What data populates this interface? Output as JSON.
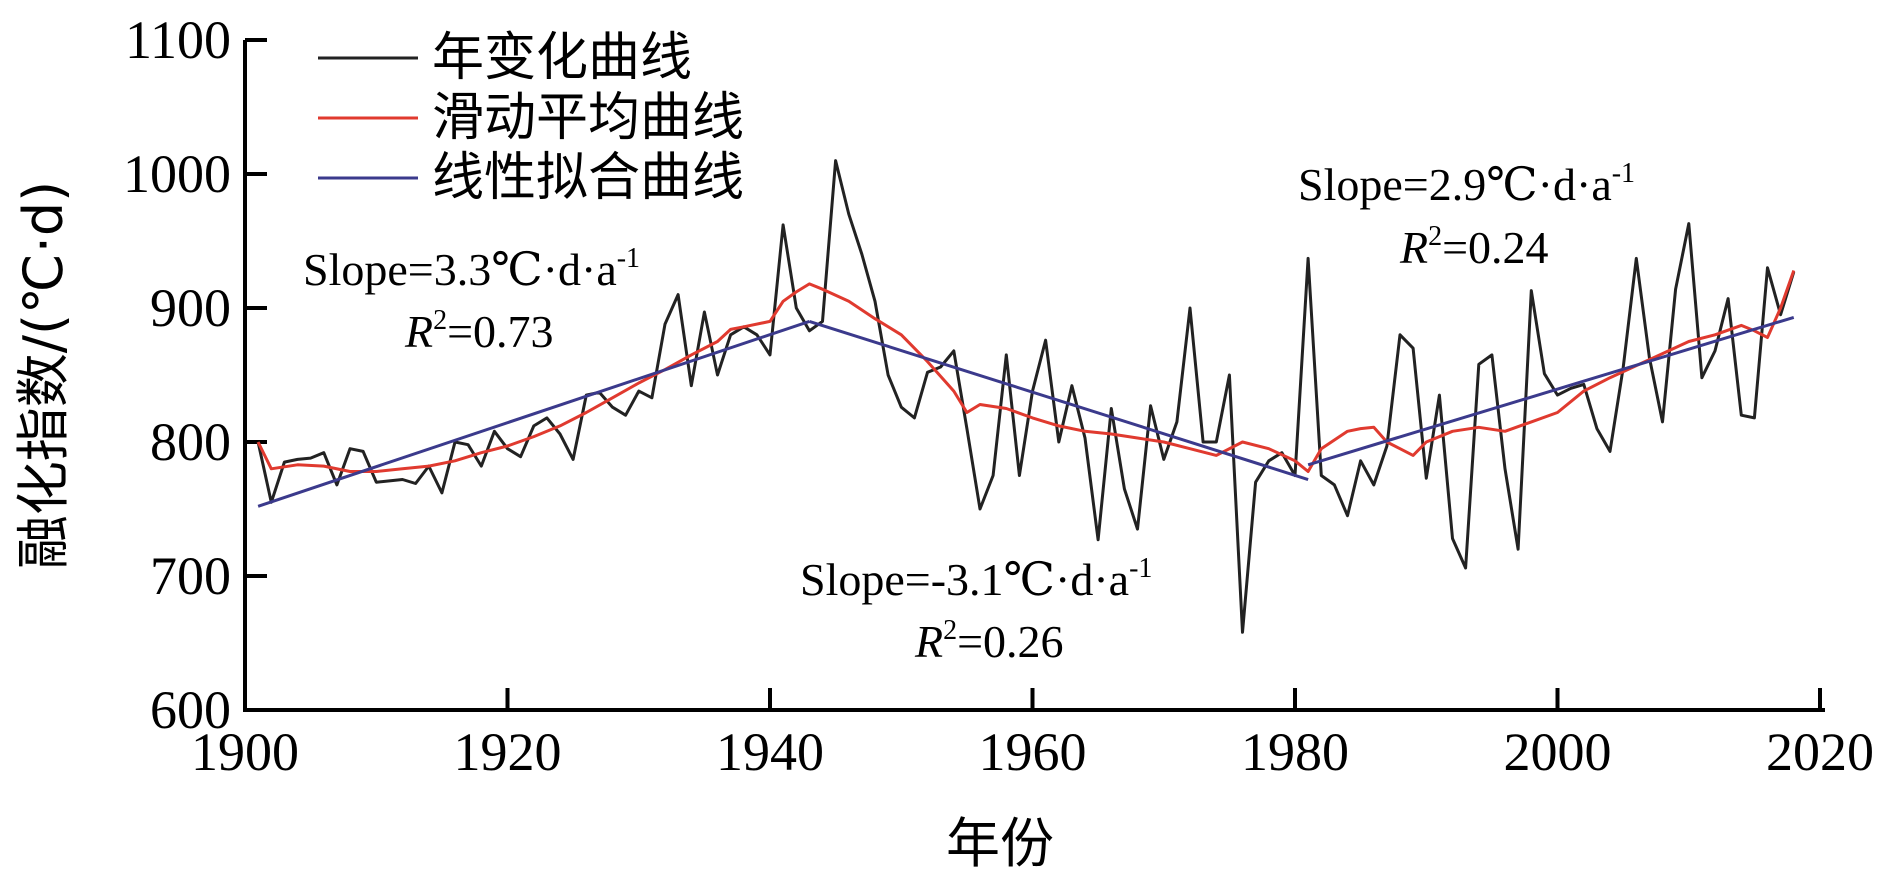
{
  "chart_data": {
    "type": "line",
    "xlabel": "年份",
    "ylabel": "融化指数/(℃·d)",
    "xlim": [
      1900,
      2020
    ],
    "ylim": [
      600,
      1100
    ],
    "x_ticks": [
      "1900",
      "1920",
      "1940",
      "1960",
      "1980",
      "2000",
      "2020"
    ],
    "y_ticks": [
      "600",
      "700",
      "800",
      "900",
      "1000",
      "1100"
    ],
    "legend_position": "top-left",
    "legend": [
      "年变化曲线",
      "滑动平均曲线",
      "线性拟合曲线"
    ],
    "colors": {
      "annual": "#222222",
      "moving_avg": "#e03a2f",
      "linear_fit": "#3b3a8c"
    },
    "series": [
      {
        "name": "年变化曲线",
        "x": [
          1901,
          1902,
          1903,
          1904,
          1905,
          1906,
          1907,
          1908,
          1909,
          1910,
          1911,
          1912,
          1913,
          1914,
          1915,
          1916,
          1917,
          1918,
          1919,
          1920,
          1921,
          1922,
          1923,
          1924,
          1925,
          1926,
          1927,
          1928,
          1929,
          1930,
          1931,
          1932,
          1933,
          1934,
          1935,
          1936,
          1937,
          1938,
          1939,
          1940,
          1941,
          1942,
          1943,
          1944,
          1945,
          1946,
          1947,
          1948,
          1949,
          1950,
          1951,
          1952,
          1953,
          1954,
          1955,
          1956,
          1957,
          1958,
          1959,
          1960,
          1961,
          1962,
          1963,
          1964,
          1965,
          1966,
          1967,
          1968,
          1969,
          1970,
          1971,
          1972,
          1973,
          1974,
          1975,
          1976,
          1977,
          1978,
          1979,
          1980,
          1981,
          1982,
          1983,
          1984,
          1985,
          1986,
          1987,
          1988,
          1989,
          1990,
          1991,
          1992,
          1993,
          1994,
          1995,
          1996,
          1997,
          1998,
          1999,
          2000,
          2001,
          2002,
          2003,
          2004,
          2005,
          2006,
          2007,
          2008,
          2009,
          2010,
          2011,
          2012,
          2013,
          2014,
          2015,
          2016,
          2017,
          2018
        ],
        "y": [
          800,
          755,
          785,
          787,
          788,
          792,
          768,
          795,
          793,
          770,
          771,
          772,
          769,
          782,
          762,
          800,
          798,
          782,
          808,
          795,
          789,
          812,
          818,
          806,
          787,
          835,
          837,
          826,
          820,
          838,
          833,
          888,
          910,
          842,
          897,
          850,
          880,
          886,
          880,
          865,
          962,
          900,
          883,
          890,
          1010,
          970,
          940,
          905,
          850,
          826,
          818,
          852,
          856,
          868,
          810,
          750,
          775,
          865,
          775,
          838,
          876,
          800,
          842,
          803,
          727,
          825,
          765,
          735,
          827,
          787,
          815,
          900,
          800,
          800,
          850,
          658,
          770,
          786,
          792,
          775,
          937,
          775,
          768,
          745,
          786,
          768,
          797,
          880,
          870,
          773,
          835,
          728,
          706,
          858,
          865,
          780,
          720,
          913,
          851,
          835,
          840,
          843,
          810,
          793,
          855,
          937,
          863,
          815,
          914,
          963,
          848,
          868,
          907,
          820,
          818,
          930,
          895,
          927
        ]
      },
      {
        "name": "滑动平均曲线",
        "x": [
          1901,
          1902,
          1904,
          1906,
          1908,
          1910,
          1912,
          1914,
          1916,
          1918,
          1920,
          1922,
          1924,
          1926,
          1928,
          1930,
          1932,
          1934,
          1936,
          1937,
          1938,
          1940,
          1941,
          1942,
          1943,
          1944,
          1946,
          1948,
          1950,
          1952,
          1954,
          1955,
          1956,
          1958,
          1960,
          1962,
          1964,
          1966,
          1968,
          1970,
          1972,
          1974,
          1976,
          1978,
          1980,
          1981,
          1982,
          1984,
          1985,
          1986,
          1987,
          1988,
          1989,
          1990,
          1992,
          1994,
          1996,
          1998,
          2000,
          2002,
          2004,
          2006,
          2008,
          2010,
          2012,
          2014,
          2015,
          2016,
          2017,
          2018
        ],
        "y": [
          800,
          780,
          783,
          782,
          778,
          778,
          780,
          782,
          786,
          792,
          797,
          804,
          812,
          822,
          833,
          844,
          854,
          865,
          875,
          884,
          886,
          890,
          905,
          912,
          918,
          914,
          905,
          892,
          880,
          860,
          838,
          822,
          828,
          825,
          818,
          812,
          808,
          806,
          803,
          800,
          795,
          790,
          800,
          795,
          786,
          778,
          795,
          808,
          810,
          811,
          800,
          795,
          790,
          800,
          808,
          811,
          808,
          815,
          822,
          838,
          848,
          857,
          866,
          875,
          880,
          887,
          883,
          878,
          900,
          928
        ]
      },
      {
        "name": "线性拟合曲线",
        "segments": [
          {
            "x": [
              1901,
              1943
            ],
            "y": [
              752,
              890
            ]
          },
          {
            "x": [
              1943,
              1981
            ],
            "y": [
              890,
              772
            ]
          },
          {
            "x": [
              1981,
              2018
            ],
            "y": [
              783,
              893
            ]
          }
        ]
      }
    ],
    "annotations": [
      {
        "slope_text": "Slope=3.3℃·d·a",
        "sup": "-1",
        "r2_value": "=0.73"
      },
      {
        "slope_text": "Slope=-3.1℃·d·a",
        "sup": "-1",
        "r2_value": "=0.26"
      },
      {
        "slope_text": "Slope=2.9℃·d·a",
        "sup": "-1",
        "r2_value": "=0.24"
      }
    ],
    "r2_symbol": "R",
    "r2_sup": "2"
  }
}
